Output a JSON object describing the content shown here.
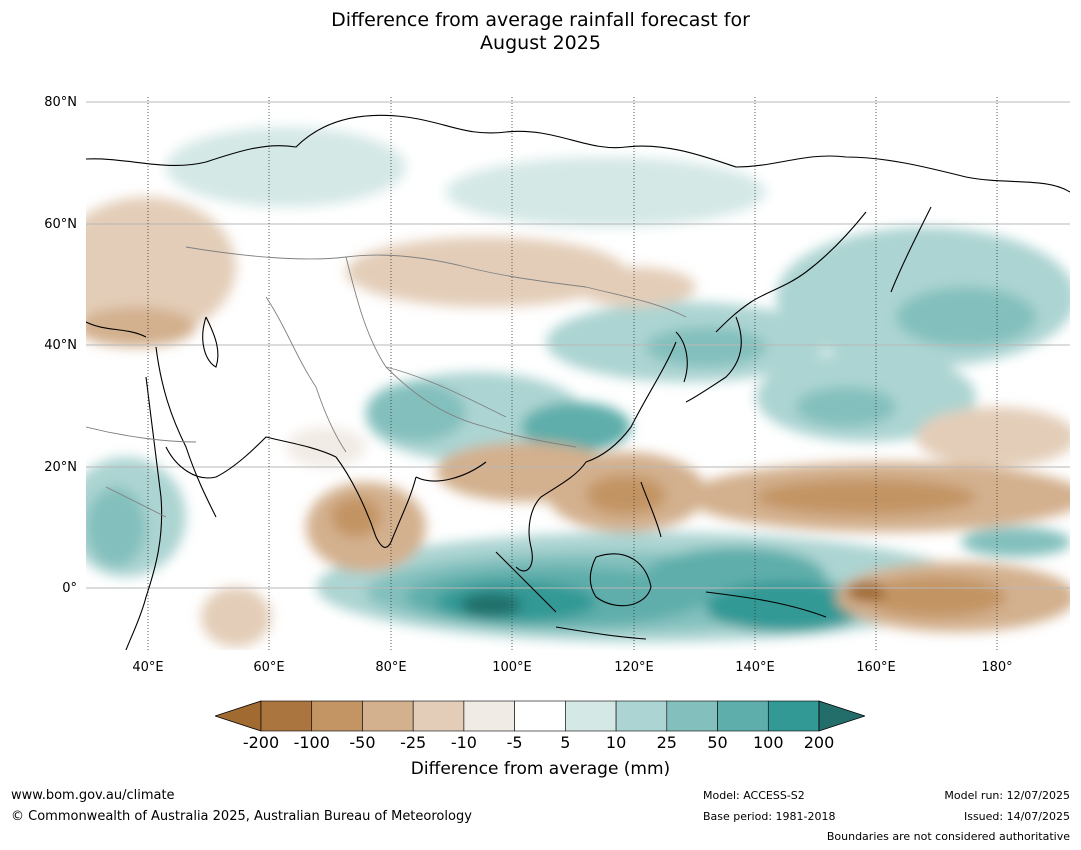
{
  "title": {
    "line1": "Difference from average rainfall forecast for",
    "line2": "August 2025"
  },
  "map": {
    "region": "Asia, Indian Ocean and western Pacific",
    "lat_ticks": [
      "80°N",
      "60°N",
      "40°N",
      "20°N",
      "0°"
    ],
    "lon_ticks": [
      "40°E",
      "60°E",
      "80°E",
      "100°E",
      "120°E",
      "140°E",
      "160°E",
      "180°"
    ],
    "wet_color_main": "#3a9c98",
    "dry_color_main": "#c69463"
  },
  "colorbar": {
    "ticks": [
      "-200",
      "-100",
      "-50",
      "-25",
      "-10",
      "-5",
      "5",
      "10",
      "25",
      "50",
      "100",
      "200"
    ],
    "colors": [
      "#a06a30",
      "#ab7540",
      "#c39464",
      "#d3b08e",
      "#e3cdb8",
      "#f1ebe5",
      "#ffffff",
      "#d4e8e6",
      "#acd4d2",
      "#83c0bd",
      "#5eaeab",
      "#329995",
      "#236e6b"
    ],
    "label": "Difference from average (mm)"
  },
  "footer": {
    "url": "www.bom.gov.au/climate",
    "copyright": "© Commonwealth of Australia 2025, Australian Bureau of Meteorology",
    "model": "Model: ACCESS-S2",
    "base_period": "Base period: 1981-2018",
    "model_run": "Model run: 12/07/2025",
    "issued": "Issued: 14/07/2025",
    "disclaimer": "Boundaries are not considered authoritative"
  }
}
